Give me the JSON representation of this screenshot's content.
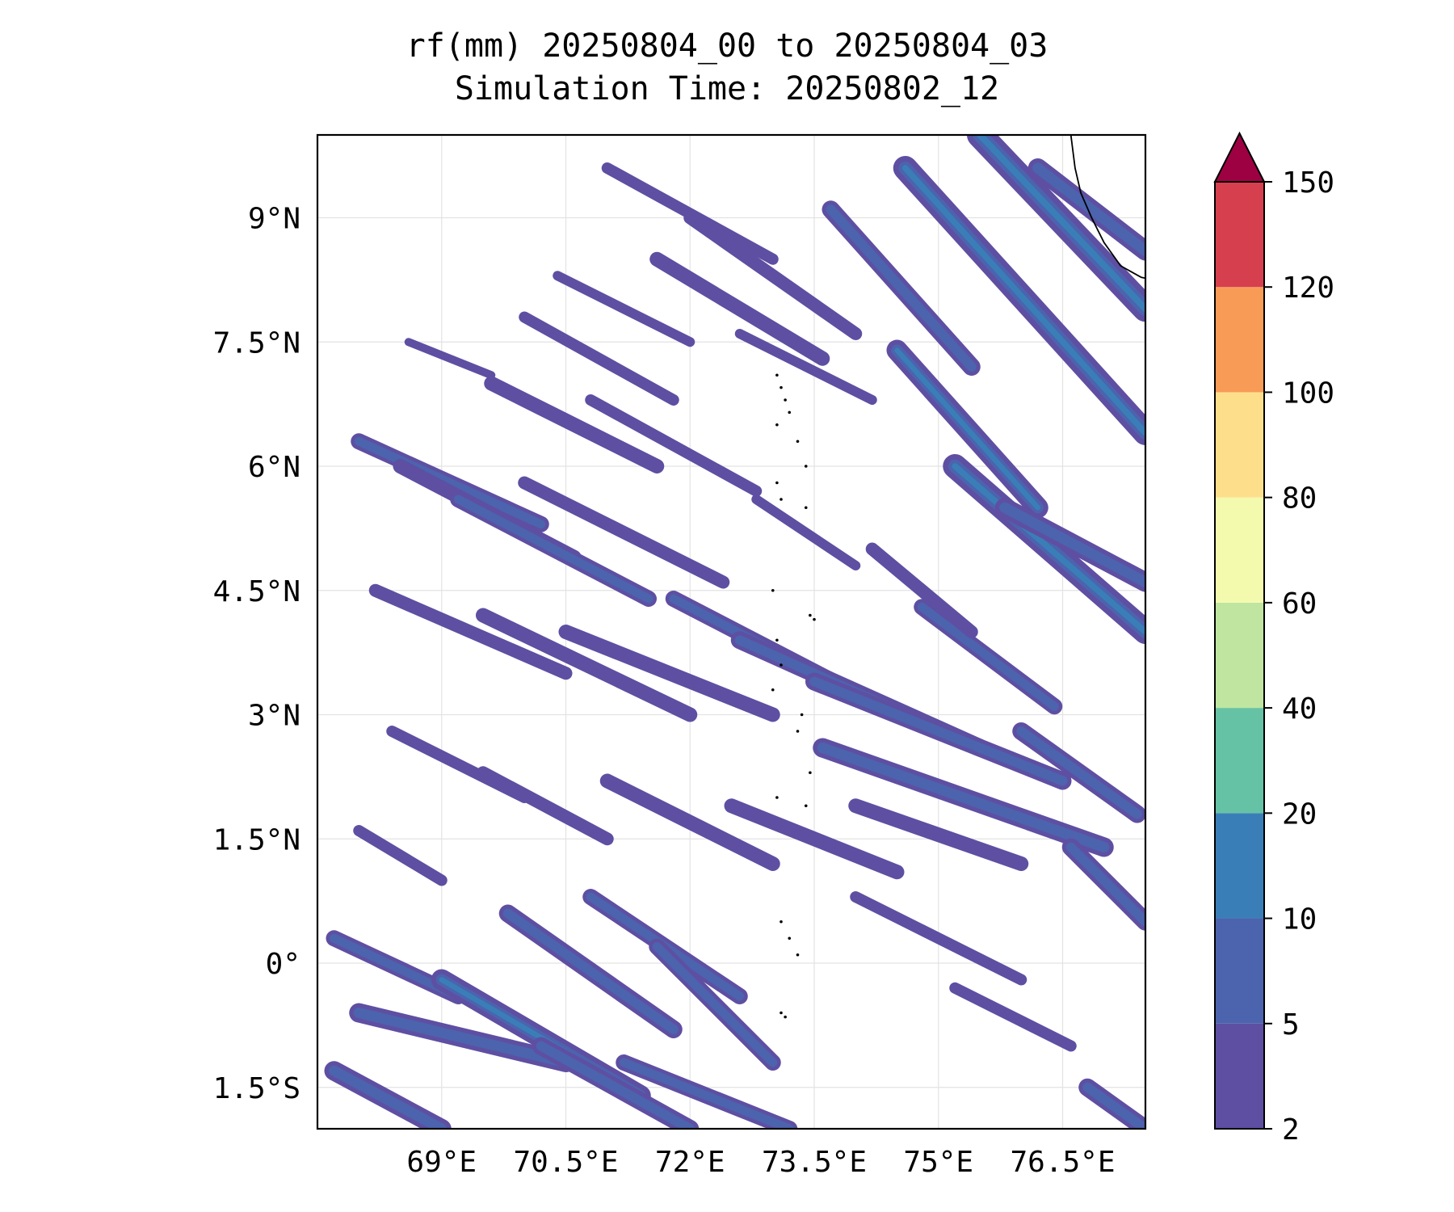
{
  "title": {
    "line1": "rf(mm) 20250804_00 to 20250804_03",
    "line2": "Simulation Time: 20250802_12"
  },
  "map": {
    "lon_range": [
      67.5,
      77.5
    ],
    "lat_range": [
      -2.0,
      10.0
    ],
    "lon_ticks": [
      {
        "value": 69.0,
        "label": "69°E"
      },
      {
        "value": 70.5,
        "label": "70.5°E"
      },
      {
        "value": 72.0,
        "label": "72°E"
      },
      {
        "value": 73.5,
        "label": "73.5°E"
      },
      {
        "value": 75.0,
        "label": "75°E"
      },
      {
        "value": 76.5,
        "label": "76.5°E"
      }
    ],
    "lat_ticks": [
      {
        "value": 9.0,
        "label": "9°N"
      },
      {
        "value": 7.5,
        "label": "7.5°N"
      },
      {
        "value": 6.0,
        "label": "6°N"
      },
      {
        "value": 4.5,
        "label": "4.5°N"
      },
      {
        "value": 3.0,
        "label": "3°N"
      },
      {
        "value": 1.5,
        "label": "1.5°N"
      },
      {
        "value": 0.0,
        "label": "0°"
      },
      {
        "value": -1.5,
        "label": "1.5°S"
      }
    ],
    "gridlines": true,
    "coastline": [
      [
        76.6,
        10.0
      ],
      [
        76.65,
        9.6
      ],
      [
        76.72,
        9.3
      ],
      [
        76.85,
        9.0
      ],
      [
        77.0,
        8.7
      ],
      [
        77.2,
        8.42
      ],
      [
        77.45,
        8.28
      ],
      [
        77.5,
        8.27
      ]
    ],
    "islands": [
      [
        73.05,
        7.1
      ],
      [
        73.1,
        6.95
      ],
      [
        73.15,
        6.8
      ],
      [
        73.2,
        6.65
      ],
      [
        73.05,
        6.5
      ],
      [
        73.3,
        6.3
      ],
      [
        73.4,
        6.0
      ],
      [
        73.05,
        5.8
      ],
      [
        73.1,
        5.6
      ],
      [
        73.4,
        5.5
      ],
      [
        73.0,
        4.5
      ],
      [
        73.45,
        4.2
      ],
      [
        73.5,
        4.15
      ],
      [
        73.05,
        3.9
      ],
      [
        73.1,
        3.6
      ],
      [
        73.0,
        3.3
      ],
      [
        73.35,
        3.0
      ],
      [
        73.3,
        2.8
      ],
      [
        73.45,
        2.3
      ],
      [
        73.05,
        2.0
      ],
      [
        73.4,
        1.9
      ],
      [
        73.1,
        0.5
      ],
      [
        73.2,
        0.3
      ],
      [
        73.3,
        0.1
      ],
      [
        73.1,
        -0.6
      ],
      [
        73.15,
        -0.65
      ]
    ],
    "rain_streaks": [
      [
        68.0,
        6.3,
        70.2,
        5.3,
        20
      ],
      [
        68.5,
        6.0,
        70.6,
        4.9,
        18
      ],
      [
        69.2,
        5.6,
        71.5,
        4.4,
        20
      ],
      [
        70.0,
        5.8,
        72.4,
        4.6,
        16
      ],
      [
        69.6,
        7.0,
        71.6,
        6.0,
        18
      ],
      [
        70.0,
        7.8,
        71.8,
        6.8,
        14
      ],
      [
        70.4,
        8.3,
        72.0,
        7.5,
        12
      ],
      [
        71.6,
        8.5,
        73.6,
        7.3,
        18
      ],
      [
        72.0,
        9.0,
        74.0,
        7.6,
        16
      ],
      [
        71.0,
        9.6,
        73.0,
        8.5,
        14
      ],
      [
        72.6,
        7.6,
        74.2,
        6.8,
        12
      ],
      [
        73.7,
        9.1,
        75.4,
        7.2,
        22
      ],
      [
        74.6,
        9.6,
        77.5,
        6.4,
        30
      ],
      [
        75.5,
        10.0,
        77.5,
        7.9,
        32
      ],
      [
        76.2,
        9.6,
        77.5,
        8.6,
        24
      ],
      [
        74.5,
        7.4,
        76.2,
        5.5,
        26
      ],
      [
        75.2,
        6.0,
        77.5,
        4.0,
        30
      ],
      [
        75.8,
        5.5,
        77.5,
        4.6,
        24
      ],
      [
        68.2,
        4.5,
        70.5,
        3.5,
        16
      ],
      [
        69.5,
        4.2,
        72.0,
        3.0,
        18
      ],
      [
        70.5,
        4.0,
        73.0,
        3.0,
        18
      ],
      [
        71.8,
        4.4,
        74.5,
        3.0,
        20
      ],
      [
        72.6,
        3.9,
        75.5,
        2.6,
        22
      ],
      [
        73.5,
        3.4,
        76.5,
        2.2,
        22
      ],
      [
        73.6,
        2.6,
        77.0,
        1.4,
        24
      ],
      [
        74.0,
        1.9,
        76.0,
        1.2,
        18
      ],
      [
        72.5,
        1.9,
        74.5,
        1.1,
        18
      ],
      [
        71.0,
        2.2,
        73.0,
        1.2,
        18
      ],
      [
        69.5,
        2.3,
        71.0,
        1.5,
        16
      ],
      [
        68.4,
        2.8,
        70.0,
        2.0,
        14
      ],
      [
        68.0,
        1.6,
        69.0,
        1.0,
        14
      ],
      [
        76.0,
        2.8,
        77.4,
        1.8,
        22
      ],
      [
        76.6,
        1.4,
        77.5,
        0.5,
        22
      ],
      [
        67.7,
        0.3,
        69.2,
        -0.4,
        20
      ],
      [
        68.0,
        -0.6,
        70.5,
        -1.2,
        24
      ],
      [
        69.0,
        -0.2,
        71.4,
        -1.6,
        26
      ],
      [
        69.8,
        0.6,
        71.8,
        -0.8,
        22
      ],
      [
        70.8,
        0.8,
        72.6,
        -0.4,
        20
      ],
      [
        71.6,
        0.2,
        73.0,
        -1.2,
        20
      ],
      [
        67.7,
        -1.3,
        69.0,
        -2.0,
        24
      ],
      [
        70.2,
        -1.0,
        72.0,
        -2.0,
        22
      ],
      [
        71.2,
        -1.2,
        73.2,
        -2.0,
        20
      ],
      [
        74.0,
        0.8,
        76.0,
        -0.2,
        14
      ],
      [
        75.2,
        -0.3,
        76.6,
        -1.0,
        14
      ],
      [
        76.8,
        -1.5,
        77.5,
        -2.0,
        22
      ],
      [
        74.8,
        4.3,
        76.4,
        3.1,
        20
      ],
      [
        74.2,
        5.0,
        75.4,
        4.0,
        16
      ],
      [
        72.8,
        5.6,
        74.0,
        4.8,
        12
      ],
      [
        68.6,
        7.5,
        69.6,
        7.1,
        10
      ],
      [
        70.8,
        6.8,
        72.8,
        5.7,
        14
      ]
    ]
  },
  "colorbar": {
    "bounds": [
      2,
      5,
      10,
      20,
      40,
      60,
      80,
      100,
      120,
      150
    ],
    "labels": [
      "2",
      "5",
      "10",
      "20",
      "40",
      "60",
      "80",
      "100",
      "120",
      "150"
    ],
    "colors": [
      "#5e4fa2",
      "#4c63ae",
      "#3a7eb8",
      "#66c2a5",
      "#bfe5a0",
      "#f4faad",
      "#fddf8b",
      "#f89b57",
      "#d6404e"
    ],
    "extend_color": "#9e0142",
    "extend": "max"
  }
}
